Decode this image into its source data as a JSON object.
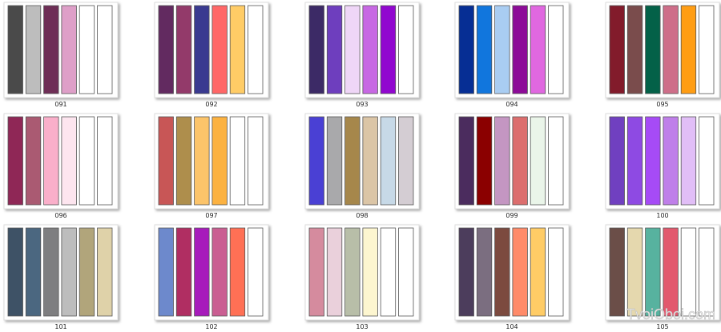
{
  "palettes": [
    {
      "label": "091",
      "colors": [
        "#4a4a4a",
        "#bdbdbd",
        "#6e2e56",
        "#de9fc8",
        "#ffffff",
        "#ffffff"
      ]
    },
    {
      "label": "092",
      "colors": [
        "#622a60",
        "#933a6a",
        "#3a3a90",
        "#ff6767",
        "#ffcc66",
        "#ffffff"
      ]
    },
    {
      "label": "093",
      "colors": [
        "#3c2a66",
        "#6e3ebe",
        "#efd6f7",
        "#c768e3",
        "#9107cf",
        "#ffffff"
      ]
    },
    {
      "label": "094",
      "colors": [
        "#062e94",
        "#1176dd",
        "#a9cdf2",
        "#8d0c98",
        "#e068e0",
        "#ffffff"
      ]
    },
    {
      "label": "095",
      "colors": [
        "#821b2b",
        "#7a4c4c",
        "#046148",
        "#ce6e89",
        "#ff9d13",
        "#ffffff"
      ]
    },
    {
      "label": "096",
      "colors": [
        "#8f2756",
        "#aa5a72",
        "#faafca",
        "#fde5ef",
        "#ffffff",
        "#ffffff"
      ]
    },
    {
      "label": "097",
      "colors": [
        "#c85656",
        "#ae8e4c",
        "#fcc46a",
        "#fcb241",
        "#ffffff",
        "#ffffff"
      ]
    },
    {
      "label": "098",
      "colors": [
        "#4a40d4",
        "#a9a9ab",
        "#a6874b",
        "#dbc5a6",
        "#c7d9e7",
        "#d4cdd3"
      ]
    },
    {
      "label": "099",
      "colors": [
        "#4b2c5e",
        "#8b0000",
        "#c496c2",
        "#dc6e6e",
        "#eaf5e9",
        "#ffffff"
      ]
    },
    {
      "label": "100",
      "colors": [
        "#7040c0",
        "#8e4ae3",
        "#a64bf6",
        "#bf7fe9",
        "#e1bef7",
        "#ffffff"
      ]
    },
    {
      "label": "101",
      "colors": [
        "#3e5266",
        "#4b6780",
        "#7e7e80",
        "#bdbdbd",
        "#b1a57b",
        "#dfd2a9"
      ]
    },
    {
      "label": "102",
      "colors": [
        "#6d89cc",
        "#b02e62",
        "#a71bbb",
        "#ca5e92",
        "#ff7055",
        "#ffffff"
      ]
    },
    {
      "label": "103",
      "colors": [
        "#d58b9e",
        "#ead0db",
        "#b8bea8",
        "#fdf6d0",
        "#ffffff",
        "#ffffff"
      ]
    },
    {
      "label": "104",
      "colors": [
        "#4c3d5c",
        "#7b6e80",
        "#7c4a3f",
        "#ff8b6a",
        "#ffcc66",
        "#ffffff"
      ]
    },
    {
      "label": "105",
      "colors": [
        "#6b4e48",
        "#e5d8ae",
        "#57b29f",
        "#e2596e",
        "#ffffff",
        "#ffffff"
      ]
    }
  ],
  "watermark": "TvoiOboi.com"
}
